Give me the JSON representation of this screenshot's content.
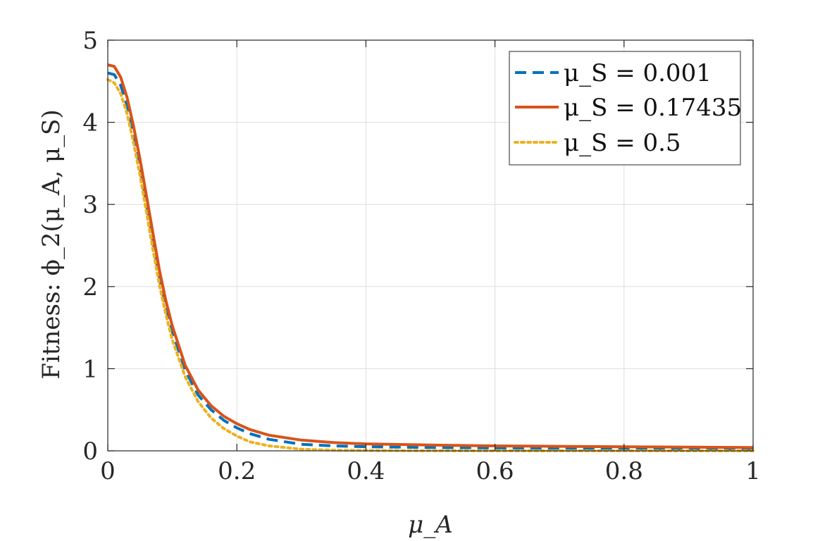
{
  "chart_data": {
    "type": "line",
    "xlabel": "μ_A",
    "ylabel": "Fitness: ϕ_2(μ_A, μ_S)",
    "xlim": [
      0,
      1
    ],
    "ylim": [
      0,
      5
    ],
    "xticks": [
      0,
      0.2,
      0.4,
      0.6,
      0.8,
      1
    ],
    "xtick_labels": [
      "0",
      "0.2",
      "0.4",
      "0.6",
      "0.8",
      "1"
    ],
    "yticks": [
      0,
      1,
      2,
      3,
      4,
      5
    ],
    "ytick_labels": [
      "0",
      "1",
      "2",
      "3",
      "4",
      "5"
    ],
    "grid": true,
    "legend_position": "top-right",
    "x": [
      0,
      0.01,
      0.02,
      0.03,
      0.04,
      0.05,
      0.06,
      0.07,
      0.08,
      0.09,
      0.1,
      0.12,
      0.14,
      0.16,
      0.18,
      0.2,
      0.22,
      0.25,
      0.3,
      0.35,
      0.4,
      0.5,
      0.6,
      0.7,
      0.8,
      0.9,
      1.0
    ],
    "series": [
      {
        "name": "μ_S = 0.001",
        "color": "#0072BD",
        "style": "dashed",
        "values": [
          4.6,
          4.58,
          4.45,
          4.2,
          3.85,
          3.45,
          3.0,
          2.55,
          2.1,
          1.75,
          1.45,
          0.98,
          0.68,
          0.5,
          0.37,
          0.28,
          0.21,
          0.14,
          0.08,
          0.06,
          0.05,
          0.04,
          0.035,
          0.03,
          0.028,
          0.026,
          0.025
        ]
      },
      {
        "name": "μ_S = 0.17435",
        "color": "#D95319",
        "style": "solid",
        "values": [
          4.7,
          4.68,
          4.55,
          4.3,
          3.95,
          3.55,
          3.1,
          2.65,
          2.2,
          1.83,
          1.52,
          1.04,
          0.74,
          0.55,
          0.42,
          0.33,
          0.26,
          0.19,
          0.13,
          0.1,
          0.085,
          0.07,
          0.06,
          0.055,
          0.05,
          0.045,
          0.04
        ]
      },
      {
        "name": "μ_S = 0.5",
        "color": "#EDB120",
        "style": "dotted",
        "values": [
          4.52,
          4.48,
          4.35,
          4.1,
          3.75,
          3.35,
          2.9,
          2.45,
          2.02,
          1.66,
          1.35,
          0.9,
          0.6,
          0.4,
          0.27,
          0.18,
          0.11,
          0.06,
          0.02,
          0.008,
          0.004,
          0.001,
          0.0,
          0.0,
          0.0,
          0.0,
          0.0
        ]
      }
    ]
  }
}
